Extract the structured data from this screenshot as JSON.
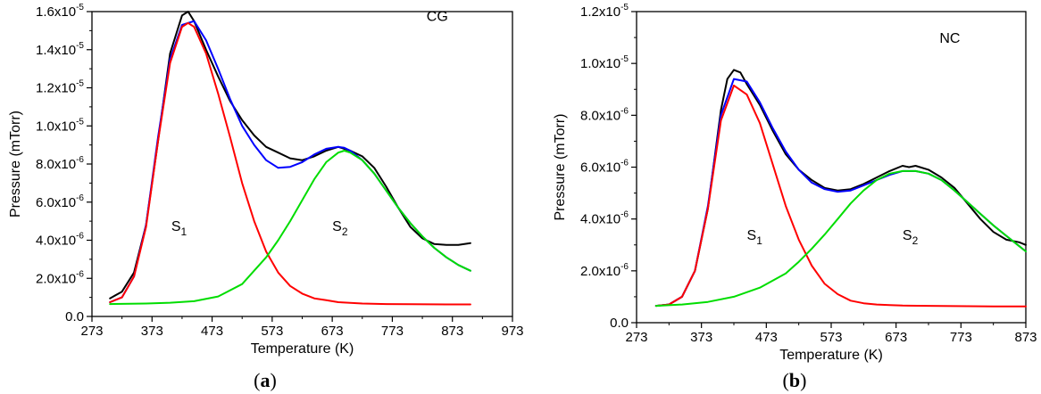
{
  "chart_data": [
    {
      "type": "line",
      "panel_label": "a",
      "xlabel": "Temperature (K)",
      "ylabel": "Pressure (mTorr)",
      "xlim": [
        273,
        973
      ],
      "ylim": [
        0,
        1.6e-05
      ],
      "x_ticks": [
        273,
        373,
        473,
        573,
        673,
        773,
        873,
        973
      ],
      "y_ticks": [
        {
          "value": 0,
          "label": "0.0"
        },
        {
          "value": 2e-06,
          "mant": "2.0x10",
          "exp": "-6"
        },
        {
          "value": 4e-06,
          "mant": "4.0x10",
          "exp": "-6"
        },
        {
          "value": 6e-06,
          "mant": "6.0x10",
          "exp": "-6"
        },
        {
          "value": 8e-06,
          "mant": "8.0x10",
          "exp": "-6"
        },
        {
          "value": 1e-05,
          "mant": "1.0x10",
          "exp": "-5"
        },
        {
          "value": 1.2e-05,
          "mant": "1.2x10",
          "exp": "-5"
        },
        {
          "value": 1.4e-05,
          "mant": "1.4x10",
          "exp": "-5"
        },
        {
          "value": 1.6e-05,
          "mant": "1.6x10",
          "exp": "-5"
        }
      ],
      "annotations": [
        {
          "base": "CG",
          "sub": "",
          "x": 830,
          "y": 1.55e-05
        },
        {
          "base": "S",
          "sub": "1",
          "x": 405,
          "y": 4.5e-06
        },
        {
          "base": "S",
          "sub": "2",
          "x": 673,
          "y": 4.5e-06
        }
      ],
      "colors": {
        "measured": "#000000",
        "fit": "#0000ff",
        "peak_1": "#ff0000",
        "peak_2": "#00dd00"
      },
      "series": [
        {
          "key": "measured",
          "x": [
            303,
            323,
            343,
            363,
            383,
            403,
            423,
            433,
            443,
            463,
            483,
            503,
            523,
            543,
            563,
            583,
            603,
            623,
            643,
            663,
            683,
            693,
            703,
            723,
            743,
            763,
            783,
            803,
            823,
            843,
            863,
            883,
            903
          ],
          "y": [
            9.5e-07,
            1.3e-06,
            2.3e-06,
            4.8e-06,
            9.2e-06,
            1.38e-05,
            1.58e-05,
            1.6e-05,
            1.55e-05,
            1.4e-05,
            1.26e-05,
            1.13e-05,
            1.03e-05,
            9.5e-06,
            8.9e-06,
            8.6e-06,
            8.3e-06,
            8.2e-06,
            8.4e-06,
            8.7e-06,
            8.9e-06,
            8.8e-06,
            8.7e-06,
            8.4e-06,
            7.8e-06,
            6.8e-06,
            5.7e-06,
            4.7e-06,
            4.1e-06,
            3.8e-06,
            3.75e-06,
            3.75e-06,
            3.85e-06
          ]
        },
        {
          "key": "fit",
          "x": [
            303,
            323,
            343,
            363,
            383,
            403,
            423,
            443,
            463,
            483,
            503,
            523,
            543,
            563,
            583,
            603,
            623,
            643,
            663,
            683,
            693,
            703,
            723,
            743,
            763,
            783,
            803,
            823,
            843,
            863,
            883,
            903
          ],
          "y": [
            7.5e-07,
            1e-06,
            2.1e-06,
            4.8e-06,
            9.4e-06,
            1.35e-05,
            1.53e-05,
            1.55e-05,
            1.45e-05,
            1.3e-05,
            1.14e-05,
            1e-05,
            9e-06,
            8.2e-06,
            7.8e-06,
            7.85e-06,
            8.1e-06,
            8.5e-06,
            8.8e-06,
            8.9e-06,
            8.85e-06,
            8.7e-06,
            8.2e-06,
            7.5e-06,
            6.6e-06,
            5.7e-06,
            4.9e-06,
            4.2e-06,
            3.6e-06,
            3.1e-06,
            2.7e-06,
            2.4e-06
          ]
        },
        {
          "key": "peak_1",
          "x": [
            303,
            323,
            343,
            363,
            383,
            403,
            423,
            433,
            443,
            463,
            483,
            503,
            523,
            543,
            563,
            583,
            603,
            623,
            643,
            663,
            683,
            723,
            763,
            803,
            863,
            903
          ],
          "y": [
            7.5e-07,
            1e-06,
            2.1e-06,
            4.7e-06,
            9.2e-06,
            1.33e-05,
            1.52e-05,
            1.54e-05,
            1.52e-05,
            1.38e-05,
            1.17e-05,
            9.4e-06,
            7e-06,
            5e-06,
            3.4e-06,
            2.3e-06,
            1.6e-06,
            1.2e-06,
            9.5e-07,
            8.5e-07,
            7.5e-07,
            6.8e-07,
            6.5e-07,
            6.4e-07,
            6.3e-07,
            6.3e-07
          ]
        },
        {
          "key": "peak_2",
          "x": [
            303,
            363,
            403,
            443,
            483,
            523,
            563,
            583,
            603,
            623,
            643,
            663,
            683,
            693,
            703,
            723,
            743,
            763,
            783,
            803,
            823,
            843,
            863,
            883,
            903
          ],
          "y": [
            6.5e-07,
            6.8e-07,
            7.2e-07,
            8e-07,
            1.05e-06,
            1.7e-06,
            3.1e-06,
            4e-06,
            5e-06,
            6.1e-06,
            7.2e-06,
            8.1e-06,
            8.6e-06,
            8.7e-06,
            8.6e-06,
            8.2e-06,
            7.5e-06,
            6.6e-06,
            5.7e-06,
            4.9e-06,
            4.2e-06,
            3.6e-06,
            3.1e-06,
            2.7e-06,
            2.4e-06
          ]
        }
      ]
    },
    {
      "type": "line",
      "panel_label": "b",
      "xlabel": "Temperature (K)",
      "ylabel": "Pressure (mTorr)",
      "xlim": [
        273,
        873
      ],
      "ylim": [
        0,
        1.2e-05
      ],
      "x_ticks": [
        273,
        373,
        473,
        573,
        673,
        773,
        873
      ],
      "y_ticks": [
        {
          "value": 0,
          "label": "0.0"
        },
        {
          "value": 2e-06,
          "mant": "2.0x10",
          "exp": "-6"
        },
        {
          "value": 4e-06,
          "mant": "4.0x10",
          "exp": "-6"
        },
        {
          "value": 6e-06,
          "mant": "6.0x10",
          "exp": "-6"
        },
        {
          "value": 8e-06,
          "mant": "8.0x10",
          "exp": "-6"
        },
        {
          "value": 1e-05,
          "mant": "1.0x10",
          "exp": "-5"
        },
        {
          "value": 1.2e-05,
          "mant": "1.2x10",
          "exp": "-5"
        }
      ],
      "annotations": [
        {
          "base": "NC",
          "sub": "",
          "x": 740,
          "y": 1.08e-05
        },
        {
          "base": "S",
          "sub": "1",
          "x": 443,
          "y": 3.2e-06
        },
        {
          "base": "S",
          "sub": "2",
          "x": 683,
          "y": 3.2e-06
        }
      ],
      "colors": {
        "measured": "#000000",
        "fit": "#0000ff",
        "peak_1": "#ff0000",
        "peak_2": "#00dd00"
      },
      "series": [
        {
          "key": "measured",
          "x": [
            303,
            323,
            343,
            363,
            383,
            403,
            413,
            423,
            433,
            443,
            463,
            483,
            503,
            523,
            543,
            563,
            583,
            603,
            623,
            643,
            663,
            683,
            693,
            703,
            723,
            743,
            763,
            783,
            803,
            823,
            843,
            863,
            873
          ],
          "y": [
            6.5e-07,
            7e-07,
            1e-06,
            2e-06,
            4.4e-06,
            8.2e-06,
            9.4e-06,
            9.75e-06,
            9.65e-06,
            9.2e-06,
            8.4e-06,
            7.4e-06,
            6.5e-06,
            5.9e-06,
            5.5e-06,
            5.2e-06,
            5.1e-06,
            5.15e-06,
            5.35e-06,
            5.6e-06,
            5.85e-06,
            6.05e-06,
            6e-06,
            6.05e-06,
            5.9e-06,
            5.6e-06,
            5.2e-06,
            4.6e-06,
            4e-06,
            3.5e-06,
            3.2e-06,
            3.1e-06,
            3e-06
          ]
        },
        {
          "key": "fit",
          "x": [
            303,
            323,
            343,
            363,
            383,
            403,
            423,
            443,
            463,
            483,
            503,
            523,
            543,
            563,
            583,
            603,
            623,
            643,
            663,
            683,
            703,
            723,
            743,
            763,
            783,
            803,
            823,
            843,
            863,
            873
          ],
          "y": [
            6.5e-07,
            7e-07,
            1e-06,
            2e-06,
            4.5e-06,
            8e-06,
            9.4e-06,
            9.3e-06,
            8.5e-06,
            7.5e-06,
            6.6e-06,
            5.9e-06,
            5.4e-06,
            5.15e-06,
            5.05e-06,
            5.1e-06,
            5.3e-06,
            5.5e-06,
            5.7e-06,
            5.85e-06,
            5.85e-06,
            5.75e-06,
            5.5e-06,
            5.1e-06,
            4.65e-06,
            4.2e-06,
            3.75e-06,
            3.35e-06,
            2.95e-06,
            2.75e-06
          ]
        },
        {
          "key": "peak_1",
          "x": [
            303,
            323,
            343,
            363,
            383,
            403,
            423,
            443,
            463,
            483,
            503,
            523,
            543,
            563,
            583,
            603,
            623,
            643,
            663,
            683,
            723,
            763,
            823,
            873
          ],
          "y": [
            6.5e-07,
            7e-07,
            1e-06,
            2e-06,
            4.4e-06,
            7.8e-06,
            9.15e-06,
            8.8e-06,
            7.7e-06,
            6.1e-06,
            4.5e-06,
            3.2e-06,
            2.2e-06,
            1.5e-06,
            1.1e-06,
            8.5e-07,
            7.5e-07,
            7e-07,
            6.8e-07,
            6.6e-07,
            6.5e-07,
            6.4e-07,
            6.3e-07,
            6.3e-07
          ]
        },
        {
          "key": "peak_2",
          "x": [
            303,
            343,
            383,
            423,
            463,
            503,
            523,
            543,
            563,
            583,
            603,
            623,
            643,
            663,
            683,
            703,
            723,
            743,
            763,
            783,
            803,
            823,
            843,
            863,
            873
          ],
          "y": [
            6.5e-07,
            7e-07,
            8e-07,
            1e-06,
            1.35e-06,
            1.9e-06,
            2.35e-06,
            2.85e-06,
            3.4e-06,
            4e-06,
            4.6e-06,
            5.1e-06,
            5.5e-06,
            5.75e-06,
            5.85e-06,
            5.85e-06,
            5.75e-06,
            5.5e-06,
            5.1e-06,
            4.65e-06,
            4.2e-06,
            3.75e-06,
            3.35e-06,
            2.95e-06,
            2.75e-06
          ]
        }
      ]
    }
  ]
}
